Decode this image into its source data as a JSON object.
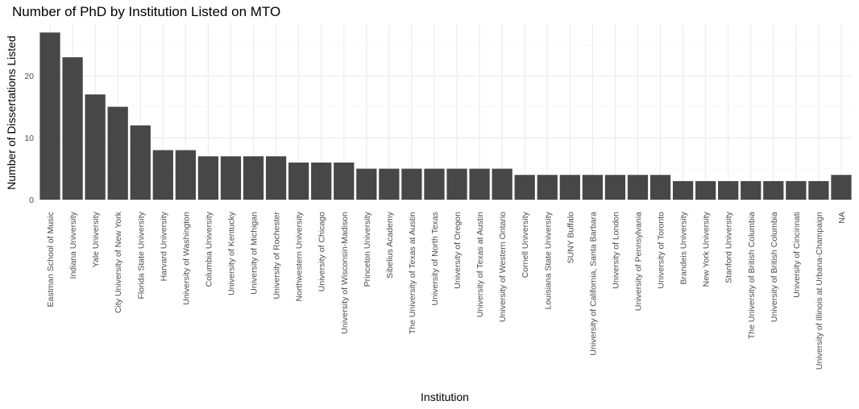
{
  "chart_data": {
    "type": "bar",
    "title": "Number of PhD by Institution Listed on MTO",
    "xlabel": "Institution",
    "ylabel": "Number of Dissertations Listed",
    "ylim": [
      0,
      28.35
    ],
    "yticks": [
      0,
      10,
      20
    ],
    "grid": true,
    "categories": [
      "Eastman School of Music",
      "Indiana University",
      "Yale University",
      "City University of New York",
      "Florida State University",
      "Harvard University",
      "University of Washington",
      "Columbia University",
      "University of Kentucky",
      "University of Michigan",
      "University of Rochester",
      "Northwestern University",
      "University of Chicago",
      "University of Wisconsin-Madison",
      "Princeton University",
      "Sibelius Academy",
      "The University of Texas at Austin",
      "University of North Texas",
      "University of Oregon",
      "University of Texas at Austin",
      "University of Western Ontario",
      "Cornell University",
      "Louisiana State University",
      "SUNY Buffalo",
      "University of California, Santa Barbara",
      "University of London",
      "University of Pennsylvania",
      "University of Toronto",
      "Brandeis University",
      "New York University",
      "Stanford University",
      "The University of British Columbia",
      "University of British Columbia",
      "University of Cincinnati",
      "University of Illinois at Urbana-Champaign",
      "NA"
    ],
    "values": [
      27,
      23,
      17,
      15,
      12,
      8,
      8,
      7,
      7,
      7,
      7,
      6,
      6,
      6,
      5,
      5,
      5,
      5,
      5,
      5,
      5,
      4,
      4,
      4,
      4,
      4,
      4,
      4,
      3,
      3,
      3,
      3,
      3,
      3,
      3,
      4
    ],
    "colors": {
      "bar": "#474747",
      "grid": "#ebebeb",
      "text": "#4d4d4d"
    }
  }
}
